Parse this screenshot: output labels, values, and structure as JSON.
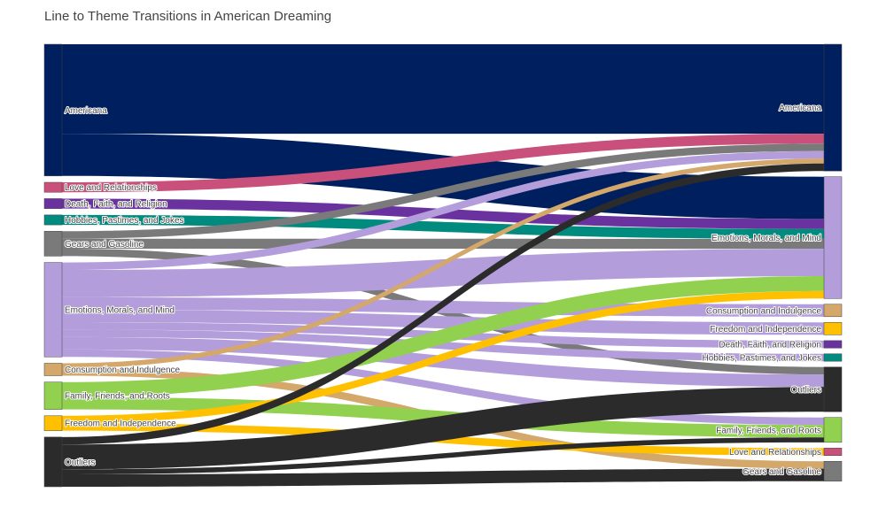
{
  "chart_data": {
    "type": "sankey",
    "title": "Line to Theme Transitions in American Dreaming",
    "source_nodes": [
      {
        "name": "Americana",
        "color": "#001f5f"
      },
      {
        "name": "Love and Relationships",
        "color": "#c8507a"
      },
      {
        "name": "Death, Faith, and Religion",
        "color": "#6a329f"
      },
      {
        "name": "Hobbies, Pastimes, and Jokes",
        "color": "#008b7e"
      },
      {
        "name": "Gears and Gasoline",
        "color": "#7a7a7a"
      },
      {
        "name": "Emotions, Morals, and Mind",
        "color": "#b39ddb"
      },
      {
        "name": "Consumption and Indulgence",
        "color": "#d4a76a"
      },
      {
        "name": "Family, Friends, and Roots",
        "color": "#92d050"
      },
      {
        "name": "Freedom and Independence",
        "color": "#ffc000"
      },
      {
        "name": "Outliers",
        "color": "#2b2b2b"
      }
    ],
    "target_nodes": [
      {
        "name": "Americana",
        "color": "#001f5f"
      },
      {
        "name": "Emotions, Morals, and Mind",
        "color": "#b39ddb"
      },
      {
        "name": "Consumption and Indulgence",
        "color": "#d4a76a"
      },
      {
        "name": "Freedom and Independence",
        "color": "#ffc000"
      },
      {
        "name": "Death, Faith, and Religion",
        "color": "#6a329f"
      },
      {
        "name": "Hobbies, Pastimes, and Jokes",
        "color": "#008b7e"
      },
      {
        "name": "Outliers",
        "color": "#2b2b2b"
      },
      {
        "name": "Family, Friends, and Roots",
        "color": "#92d050"
      },
      {
        "name": "Love and Relationships",
        "color": "#c8507a"
      },
      {
        "name": "Gears and Gasoline",
        "color": "#7a7a7a"
      }
    ],
    "links": [
      {
        "source": "Americana",
        "target": "Americana",
        "value": 36
      },
      {
        "source": "Americana",
        "target": "Emotions, Morals, and Mind",
        "value": 17
      },
      {
        "source": "Love and Relationships",
        "target": "Americana",
        "value": 4
      },
      {
        "source": "Death, Faith, and Religion",
        "target": "Emotions, Morals, and Mind",
        "value": 4
      },
      {
        "source": "Hobbies, Pastimes, and Jokes",
        "target": "Emotions, Morals, and Mind",
        "value": 4
      },
      {
        "source": "Gears and Gasoline",
        "target": "Americana",
        "value": 3
      },
      {
        "source": "Gears and Gasoline",
        "target": "Emotions, Morals, and Mind",
        "value": 4
      },
      {
        "source": "Gears and Gasoline",
        "target": "Outliers",
        "value": 3
      },
      {
        "source": "Emotions, Morals, and Mind",
        "target": "Americana",
        "value": 3
      },
      {
        "source": "Emotions, Morals, and Mind",
        "target": "Emotions, Morals, and Mind",
        "value": 11
      },
      {
        "source": "Emotions, Morals, and Mind",
        "target": "Consumption and Indulgence",
        "value": 5
      },
      {
        "source": "Emotions, Morals, and Mind",
        "target": "Freedom and Independence",
        "value": 5
      },
      {
        "source": "Emotions, Morals, and Mind",
        "target": "Death, Faith, and Religion",
        "value": 3
      },
      {
        "source": "Emotions, Morals, and Mind",
        "target": "Hobbies, Pastimes, and Jokes",
        "value": 3
      },
      {
        "source": "Emotions, Morals, and Mind",
        "target": "Outliers",
        "value": 5
      },
      {
        "source": "Emotions, Morals, and Mind",
        "target": "Family, Friends, and Roots",
        "value": 3
      },
      {
        "source": "Consumption and Indulgence",
        "target": "Americana",
        "value": 2
      },
      {
        "source": "Consumption and Indulgence",
        "target": "Gears and Gasoline",
        "value": 3
      },
      {
        "source": "Family, Friends, and Roots",
        "target": "Emotions, Morals, and Mind",
        "value": 6
      },
      {
        "source": "Family, Friends, and Roots",
        "target": "Family, Friends, and Roots",
        "value": 5
      },
      {
        "source": "Freedom and Independence",
        "target": "Emotions, Morals, and Mind",
        "value": 3
      },
      {
        "source": "Freedom and Independence",
        "target": "Love and Relationships",
        "value": 3
      },
      {
        "source": "Outliers",
        "target": "Americana",
        "value": 3
      },
      {
        "source": "Outliers",
        "target": "Outliers",
        "value": 10
      },
      {
        "source": "Outliers",
        "target": "Family, Friends, and Roots",
        "value": 2
      },
      {
        "source": "Outliers",
        "target": "Gears and Gasoline",
        "value": 5
      }
    ]
  }
}
